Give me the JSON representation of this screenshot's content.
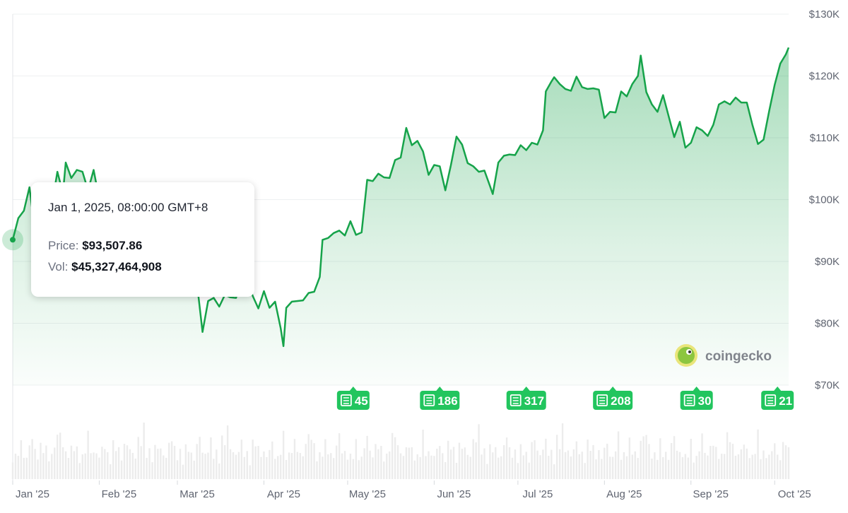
{
  "chart_data": {
    "type": "area",
    "x_axis": {
      "type": "date",
      "ticks": [
        "Jan '25",
        "Feb '25",
        "Mar '25",
        "Apr '25",
        "May '25",
        "Jun '25",
        "Jul '25",
        "Aug '25",
        "Sep '25",
        "Oct '25"
      ],
      "range": [
        "2025-01-01",
        "2025-10-06"
      ]
    },
    "y_axis": {
      "position": "right",
      "ticks": [
        "$70K",
        "$80K",
        "$90K",
        "$100K",
        "$110K",
        "$120K",
        "$130K"
      ],
      "range": [
        70000,
        130000
      ]
    },
    "grid": true,
    "series": [
      {
        "color": "#16a34a",
        "fill": "gradient-green",
        "points": [
          [
            "2025-01-01",
            93500
          ],
          [
            "2025-01-03",
            97000
          ],
          [
            "2025-01-05",
            98200
          ],
          [
            "2025-01-07",
            102000
          ],
          [
            "2025-01-09",
            94800
          ],
          [
            "2025-01-11",
            94500
          ],
          [
            "2025-01-13",
            94200
          ],
          [
            "2025-01-15",
            99000
          ],
          [
            "2025-01-17",
            104500
          ],
          [
            "2025-01-19",
            101000
          ],
          [
            "2025-01-20",
            106000
          ],
          [
            "2025-01-22",
            103500
          ],
          [
            "2025-01-24",
            104800
          ],
          [
            "2025-01-26",
            104500
          ],
          [
            "2025-01-28",
            101500
          ],
          [
            "2025-01-30",
            104800
          ],
          [
            "2025-01-31",
            102400
          ],
          [
            "2025-02-02",
            97200
          ],
          [
            "2025-02-04",
            98500
          ],
          [
            "2025-02-06",
            96500
          ],
          [
            "2025-02-08",
            96800
          ],
          [
            "2025-02-10",
            97500
          ],
          [
            "2025-02-12",
            96200
          ],
          [
            "2025-02-14",
            97800
          ],
          [
            "2025-02-16",
            96500
          ],
          [
            "2025-02-18",
            95500
          ],
          [
            "2025-02-20",
            98000
          ],
          [
            "2025-02-22",
            96500
          ],
          [
            "2025-02-24",
            91500
          ],
          [
            "2025-02-26",
            86000
          ],
          [
            "2025-02-28",
            84500
          ],
          [
            "2025-03-02",
            94000
          ],
          [
            "2025-03-04",
            87200
          ],
          [
            "2025-03-06",
            90500
          ],
          [
            "2025-03-08",
            86500
          ],
          [
            "2025-03-10",
            78600
          ],
          [
            "2025-03-12",
            83600
          ],
          [
            "2025-03-14",
            84100
          ],
          [
            "2025-03-16",
            82700
          ],
          [
            "2025-03-18",
            84600
          ],
          [
            "2025-03-20",
            84200
          ],
          [
            "2025-03-22",
            84100
          ],
          [
            "2025-03-24",
            87300
          ],
          [
            "2025-03-26",
            86900
          ],
          [
            "2025-03-28",
            84400
          ],
          [
            "2025-03-30",
            82400
          ],
          [
            "2025-04-01",
            85200
          ],
          [
            "2025-04-03",
            82500
          ],
          [
            "2025-04-05",
            83500
          ],
          [
            "2025-04-07",
            79200
          ],
          [
            "2025-04-08",
            76300
          ],
          [
            "2025-04-09",
            82500
          ],
          [
            "2025-04-11",
            83500
          ],
          [
            "2025-04-13",
            83600
          ],
          [
            "2025-04-15",
            83700
          ],
          [
            "2025-04-17",
            84900
          ],
          [
            "2025-04-19",
            85100
          ],
          [
            "2025-04-21",
            87500
          ],
          [
            "2025-04-22",
            93500
          ],
          [
            "2025-04-24",
            93800
          ],
          [
            "2025-04-26",
            94600
          ],
          [
            "2025-04-28",
            95000
          ],
          [
            "2025-04-30",
            94200
          ],
          [
            "2025-05-02",
            96500
          ],
          [
            "2025-05-04",
            94300
          ],
          [
            "2025-05-06",
            94700
          ],
          [
            "2025-05-08",
            103200
          ],
          [
            "2025-05-10",
            103000
          ],
          [
            "2025-05-12",
            104200
          ],
          [
            "2025-05-14",
            103600
          ],
          [
            "2025-05-16",
            103500
          ],
          [
            "2025-05-18",
            106400
          ],
          [
            "2025-05-20",
            106800
          ],
          [
            "2025-05-22",
            111600
          ],
          [
            "2025-05-24",
            108800
          ],
          [
            "2025-05-26",
            109500
          ],
          [
            "2025-05-28",
            107800
          ],
          [
            "2025-05-30",
            104000
          ],
          [
            "2025-06-01",
            105600
          ],
          [
            "2025-06-03",
            105400
          ],
          [
            "2025-06-05",
            101500
          ],
          [
            "2025-06-07",
            105600
          ],
          [
            "2025-06-09",
            110200
          ],
          [
            "2025-06-11",
            108900
          ],
          [
            "2025-06-13",
            105900
          ],
          [
            "2025-06-15",
            105400
          ],
          [
            "2025-06-17",
            104500
          ],
          [
            "2025-06-19",
            104700
          ],
          [
            "2025-06-21",
            102200
          ],
          [
            "2025-06-22",
            100900
          ],
          [
            "2025-06-24",
            106000
          ],
          [
            "2025-06-26",
            107100
          ],
          [
            "2025-06-28",
            107300
          ],
          [
            "2025-06-30",
            107200
          ],
          [
            "2025-07-02",
            108800
          ],
          [
            "2025-07-04",
            108000
          ],
          [
            "2025-07-06",
            109200
          ],
          [
            "2025-07-08",
            108900
          ],
          [
            "2025-07-10",
            111200
          ],
          [
            "2025-07-11",
            117500
          ],
          [
            "2025-07-13",
            119100
          ],
          [
            "2025-07-14",
            119800
          ],
          [
            "2025-07-16",
            118700
          ],
          [
            "2025-07-18",
            117900
          ],
          [
            "2025-07-20",
            117600
          ],
          [
            "2025-07-22",
            119900
          ],
          [
            "2025-07-24",
            118200
          ],
          [
            "2025-07-26",
            117900
          ],
          [
            "2025-07-28",
            118000
          ],
          [
            "2025-07-30",
            117800
          ],
          [
            "2025-08-01",
            113200
          ],
          [
            "2025-08-03",
            114200
          ],
          [
            "2025-08-05",
            114100
          ],
          [
            "2025-08-07",
            117500
          ],
          [
            "2025-08-09",
            116700
          ],
          [
            "2025-08-11",
            118700
          ],
          [
            "2025-08-13",
            120000
          ],
          [
            "2025-08-14",
            123300
          ],
          [
            "2025-08-16",
            117400
          ],
          [
            "2025-08-18",
            115400
          ],
          [
            "2025-08-20",
            114200
          ],
          [
            "2025-08-22",
            116900
          ],
          [
            "2025-08-24",
            113500
          ],
          [
            "2025-08-26",
            110100
          ],
          [
            "2025-08-28",
            112600
          ],
          [
            "2025-08-30",
            108400
          ],
          [
            "2025-09-01",
            109200
          ],
          [
            "2025-09-03",
            111700
          ],
          [
            "2025-09-05",
            111200
          ],
          [
            "2025-09-07",
            110300
          ],
          [
            "2025-09-09",
            112100
          ],
          [
            "2025-09-11",
            115400
          ],
          [
            "2025-09-13",
            115900
          ],
          [
            "2025-09-15",
            115400
          ],
          [
            "2025-09-17",
            116500
          ],
          [
            "2025-09-19",
            115700
          ],
          [
            "2025-09-21",
            115700
          ],
          [
            "2025-09-23",
            112100
          ],
          [
            "2025-09-25",
            109000
          ],
          [
            "2025-09-27",
            109700
          ],
          [
            "2025-09-29",
            114300
          ],
          [
            "2025-10-01",
            118600
          ],
          [
            "2025-10-03",
            122000
          ],
          [
            "2025-10-05",
            123500
          ],
          [
            "2025-10-06",
            124600
          ]
        ]
      }
    ],
    "hover_marker": {
      "x": "2025-01-01",
      "y": 93507.86
    },
    "news_markers": [
      {
        "date": "2025-05-03",
        "count": "45"
      },
      {
        "date": "2025-06-03",
        "count": "186"
      },
      {
        "date": "2025-07-04",
        "count": "317"
      },
      {
        "date": "2025-08-04",
        "count": "208"
      },
      {
        "date": "2025-09-03",
        "count": "30"
      },
      {
        "date": "2025-10-02",
        "count": "21"
      }
    ],
    "volume": {
      "color": "#ececec",
      "values": [
        45,
        38,
        52,
        60,
        41,
        35,
        58,
        72,
        48,
        40,
        55,
        63,
        50,
        44,
        38,
        66,
        70,
        85,
        54,
        46,
        40,
        52,
        61,
        49,
        42,
        37,
        59,
        74,
        51,
        43
      ]
    }
  },
  "tooltip": {
    "date": "Jan 1, 2025, 08:00:00 GMT+8",
    "price_label": "Price:",
    "price_value": "$93,507.86",
    "vol_label": "Vol:",
    "vol_value": "$45,327,464,908"
  },
  "watermark": {
    "text": "coingecko",
    "icon": "coingecko-gecko-icon"
  },
  "news_icon": "newspaper-icon"
}
